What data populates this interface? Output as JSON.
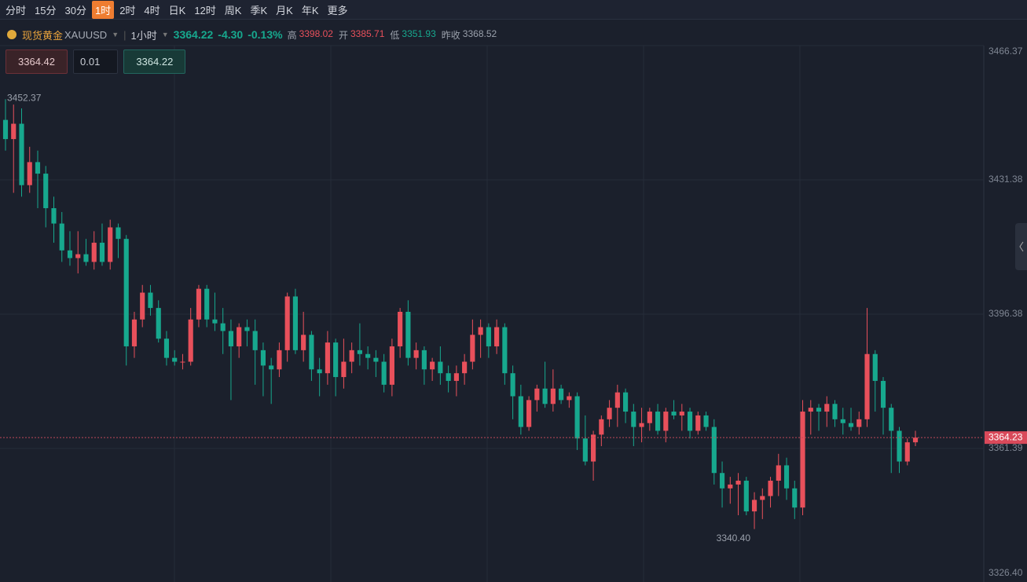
{
  "toolbar": {
    "intervals": [
      "分时",
      "15分",
      "30分",
      "1时",
      "2时",
      "4时",
      "日K",
      "12时",
      "周K",
      "季K",
      "月K",
      "年K"
    ],
    "active": 3,
    "more": "更多"
  },
  "symbol": {
    "name": "现货黄金",
    "code": "XAUUSD",
    "interval": "1小时",
    "price": "3364.22",
    "change": "-4.30",
    "change_pct": "-0.13%",
    "stats": [
      {
        "label": "高",
        "value": "3398.02",
        "tone": "up"
      },
      {
        "label": "开",
        "value": "3385.71",
        "tone": "up"
      },
      {
        "label": "低",
        "value": "3351.93",
        "tone": "down"
      },
      {
        "label": "昨收",
        "value": "3368.52",
        "tone": "flat"
      }
    ]
  },
  "order": {
    "sell": "3364.42",
    "qty": "0.01",
    "buy": "3364.22"
  },
  "chart_data": {
    "type": "candlestick",
    "up_color": "#e8505b",
    "down_color": "#17a88e",
    "ylim": [
      3326.4,
      3466.37
    ],
    "yticks": [
      {
        "value": 3326.4,
        "label": "3326.40"
      },
      3361.39,
      3396.38,
      3431.38,
      3466.37
    ],
    "grid": true,
    "last_price": 3364.23,
    "high_label": 3452.37,
    "low_label": {
      "value": 3340.4,
      "label": "3340.40"
    },
    "ohlc": [
      [
        3447,
        3452.37,
        3439,
        3442
      ],
      [
        3442,
        3451,
        3428,
        3446
      ],
      [
        3446,
        3450,
        3427,
        3430
      ],
      [
        3430,
        3440,
        3428,
        3436
      ],
      [
        3436,
        3439,
        3424,
        3433
      ],
      [
        3433,
        3435,
        3419,
        3424
      ],
      [
        3424,
        3427,
        3415,
        3420
      ],
      [
        3420,
        3423,
        3410,
        3413
      ],
      [
        3413,
        3418,
        3409,
        3411
      ],
      [
        3411,
        3418,
        3407,
        3412
      ],
      [
        3412,
        3416,
        3409,
        3410
      ],
      [
        3410,
        3418,
        3408,
        3415
      ],
      [
        3415,
        3420,
        3409,
        3410
      ],
      [
        3410,
        3421,
        3408,
        3419
      ],
      [
        3419,
        3420,
        3411,
        3416
      ],
      [
        3416,
        3417,
        3383,
        3388
      ],
      [
        3388,
        3397,
        3385,
        3395
      ],
      [
        3395,
        3404,
        3393,
        3402
      ],
      [
        3402,
        3404,
        3396,
        3398
      ],
      [
        3398,
        3400,
        3389,
        3390
      ],
      [
        3390,
        3392,
        3383,
        3385
      ],
      [
        3385,
        3387,
        3383,
        3384
      ],
      [
        3384,
        3386,
        3382,
        3384
      ],
      [
        3384,
        3398,
        3383,
        3395
      ],
      [
        3395,
        3404,
        3393,
        3403
      ],
      [
        3403,
        3404,
        3393,
        3395
      ],
      [
        3395,
        3402,
        3392,
        3394
      ],
      [
        3394,
        3398,
        3386,
        3392
      ],
      [
        3392,
        3395,
        3374,
        3388
      ],
      [
        3388,
        3394,
        3385,
        3393
      ],
      [
        3393,
        3395,
        3388,
        3392
      ],
      [
        3392,
        3395,
        3378,
        3387
      ],
      [
        3387,
        3389,
        3375,
        3383
      ],
      [
        3383,
        3385,
        3373,
        3382
      ],
      [
        3382,
        3389,
        3380,
        3387
      ],
      [
        3387,
        3402,
        3384,
        3401
      ],
      [
        3401,
        3403,
        3386,
        3387
      ],
      [
        3387,
        3397,
        3384,
        3391
      ],
      [
        3391,
        3392,
        3379,
        3382
      ],
      [
        3382,
        3385,
        3375,
        3381
      ],
      [
        3381,
        3392,
        3378,
        3389
      ],
      [
        3389,
        3390,
        3375,
        3380
      ],
      [
        3380,
        3390,
        3377,
        3384
      ],
      [
        3384,
        3389,
        3381,
        3387
      ],
      [
        3387,
        3394,
        3383,
        3386
      ],
      [
        3386,
        3388,
        3382,
        3385
      ],
      [
        3385,
        3387,
        3380,
        3384
      ],
      [
        3384,
        3386,
        3376,
        3378
      ],
      [
        3378,
        3390,
        3375,
        3388
      ],
      [
        3388,
        3398,
        3385,
        3397
      ],
      [
        3397,
        3400,
        3383,
        3385
      ],
      [
        3385,
        3389,
        3382,
        3387
      ],
      [
        3387,
        3388,
        3378,
        3382
      ],
      [
        3382,
        3385,
        3379,
        3384
      ],
      [
        3384,
        3388,
        3378,
        3381
      ],
      [
        3381,
        3383,
        3376,
        3379
      ],
      [
        3379,
        3383,
        3375,
        3381
      ],
      [
        3381,
        3386,
        3378,
        3384
      ],
      [
        3384,
        3395,
        3382,
        3391
      ],
      [
        3391,
        3395,
        3385,
        3393
      ],
      [
        3393,
        3394,
        3385,
        3388
      ],
      [
        3388,
        3395,
        3386,
        3393
      ],
      [
        3393,
        3394,
        3378,
        3381
      ],
      [
        3381,
        3383,
        3369,
        3375
      ],
      [
        3375,
        3378,
        3365,
        3367
      ],
      [
        3367,
        3375,
        3366,
        3374
      ],
      [
        3374,
        3378,
        3371,
        3377
      ],
      [
        3377,
        3384,
        3372,
        3373
      ],
      [
        3373,
        3382,
        3371,
        3377
      ],
      [
        3377,
        3378,
        3373,
        3374
      ],
      [
        3374,
        3376,
        3372,
        3375
      ],
      [
        3375,
        3376,
        3361,
        3364
      ],
      [
        3364,
        3370,
        3357,
        3358
      ],
      [
        3358,
        3366,
        3353,
        3365
      ],
      [
        3365,
        3370,
        3362,
        3369
      ],
      [
        3369,
        3374,
        3367,
        3372
      ],
      [
        3372,
        3378,
        3367,
        3376
      ],
      [
        3376,
        3377,
        3368,
        3371
      ],
      [
        3371,
        3373,
        3362,
        3367
      ],
      [
        3367,
        3372,
        3363,
        3368
      ],
      [
        3368,
        3372,
        3366,
        3371
      ],
      [
        3371,
        3373,
        3365,
        3366
      ],
      [
        3366,
        3372,
        3363,
        3371
      ],
      [
        3371,
        3374,
        3369,
        3370
      ],
      [
        3370,
        3373,
        3366,
        3371
      ],
      [
        3371,
        3372,
        3364,
        3366
      ],
      [
        3366,
        3371,
        3365,
        3370
      ],
      [
        3370,
        3371,
        3366,
        3367
      ],
      [
        3367,
        3369,
        3352,
        3355
      ],
      [
        3355,
        3358,
        3346,
        3351
      ],
      [
        3351,
        3354,
        3347,
        3352
      ],
      [
        3352,
        3355,
        3344,
        3353
      ],
      [
        3353,
        3354,
        3344,
        3345
      ],
      [
        3345,
        3350,
        3340.4,
        3348
      ],
      [
        3348,
        3351,
        3343,
        3349
      ],
      [
        3349,
        3354,
        3346,
        3353
      ],
      [
        3353,
        3360,
        3349,
        3357
      ],
      [
        3357,
        3359,
        3348,
        3351
      ],
      [
        3351,
        3353,
        3343,
        3346
      ],
      [
        3346,
        3374,
        3344,
        3371
      ],
      [
        3371,
        3374,
        3365,
        3372
      ],
      [
        3372,
        3373,
        3366,
        3371
      ],
      [
        3371,
        3375,
        3367,
        3373
      ],
      [
        3373,
        3374,
        3367,
        3369
      ],
      [
        3369,
        3372,
        3365,
        3368
      ],
      [
        3368,
        3372,
        3366,
        3367
      ],
      [
        3367,
        3371,
        3365,
        3369
      ],
      [
        3369,
        3398,
        3367,
        3386
      ],
      [
        3386,
        3387,
        3371,
        3379
      ],
      [
        3379,
        3380,
        3365,
        3372
      ],
      [
        3372,
        3373,
        3355,
        3366
      ],
      [
        3366,
        3367,
        3355,
        3358
      ],
      [
        3358,
        3364,
        3357,
        3363
      ],
      [
        3363,
        3366,
        3362,
        3364.22
      ]
    ]
  }
}
